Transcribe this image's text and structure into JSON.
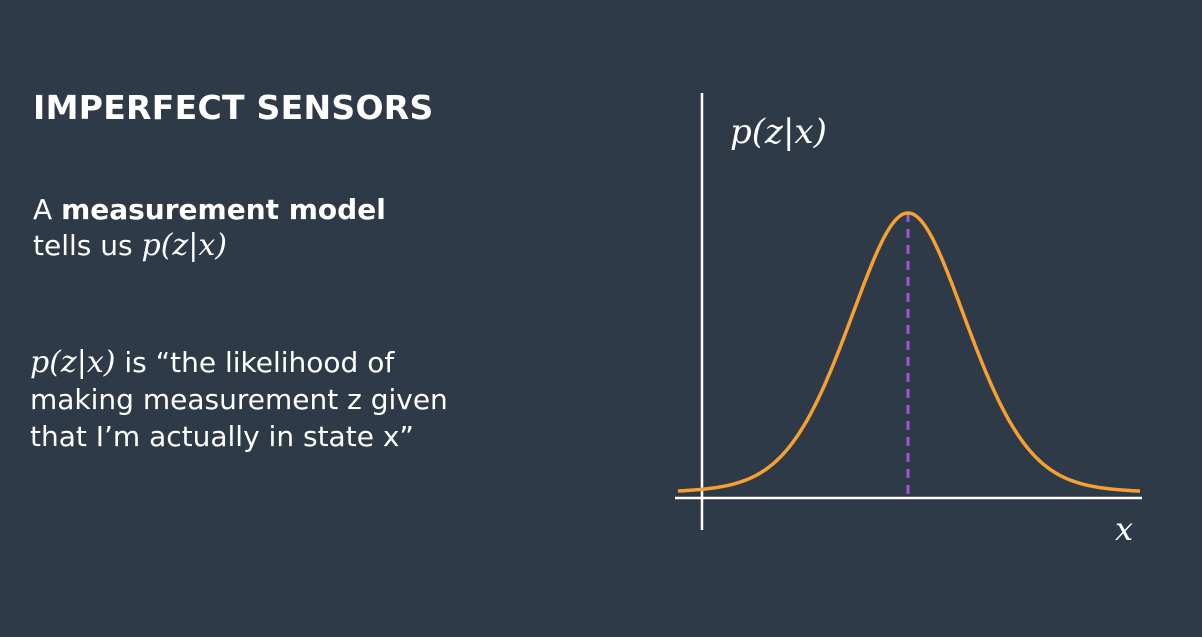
{
  "slide": {
    "title": "IMPERFECT SENSORS",
    "para1": {
      "prefix": "A ",
      "emphasis": "measurement model",
      "line2_prefix": "tells us ",
      "math": "p(z|x)"
    },
    "para2": {
      "math": "p(z|x)",
      "text": " is “the likelihood of making measurement z given that I’m actually in state x”"
    }
  },
  "chart_data": {
    "type": "line",
    "ylabel": "p(z|x)",
    "xlabel": "x",
    "series": [
      {
        "curve": "bell",
        "color": "#f5a030",
        "peak_marker": "dashed-vertical",
        "marker_color": "#9b59d0"
      }
    ],
    "axis_color": "#ffffff",
    "background": "#2e3a47"
  }
}
